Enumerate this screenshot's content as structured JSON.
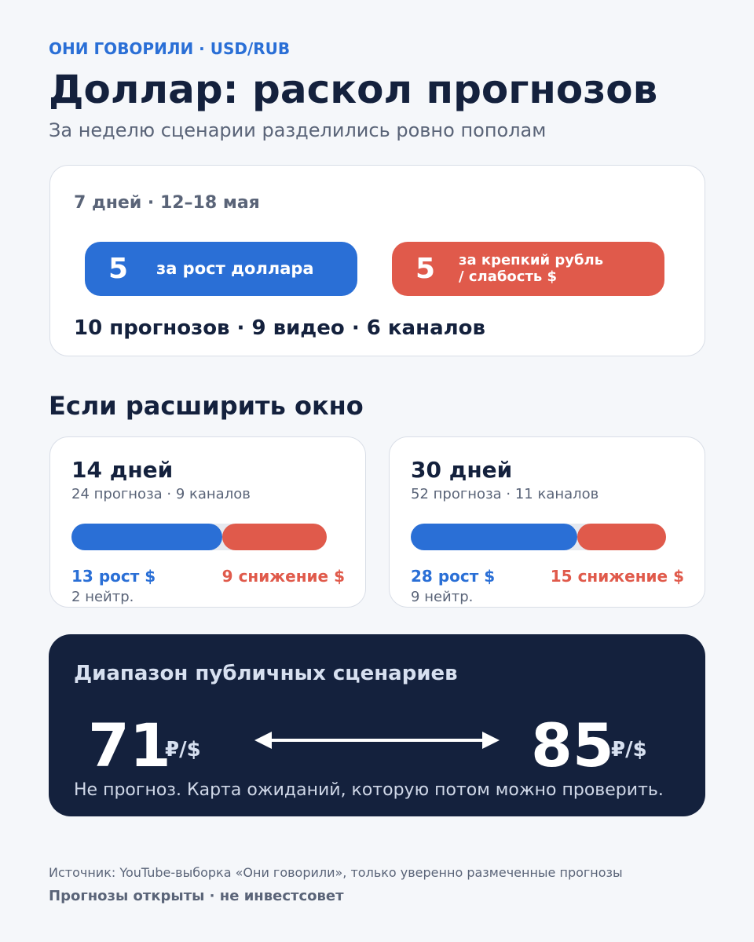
{
  "header": {
    "kicker": "ОНИ ГОВОРИЛИ · USD/RUB",
    "title": "Доллар: раскол прогнозов",
    "subtitle": "За неделю сценарии разделились ровно пополам"
  },
  "week": {
    "period": "7 дней · 12–18 мая",
    "up": 5,
    "up_label": "за рост доллара",
    "down": 5,
    "down_label": [
      "за крепкий рубль",
      "/ слабость $"
    ],
    "summary": "10 прогнозов · 9 видео · 6 каналов"
  },
  "windows_title": "Если расширить окно",
  "windows": [
    {
      "title": "14 дней",
      "meta": "24 прогноза · 9 каналов",
      "up": 13,
      "up_label": "рост $",
      "down": 9,
      "down_label": "снижение $",
      "neutral": 2,
      "neutral_label": "нейтр."
    },
    {
      "title": "30 дней",
      "meta": "52 прогноза · 11 каналов",
      "up": 28,
      "up_label": "рост $",
      "down": 15,
      "down_label": "снижение $",
      "neutral": 9,
      "neutral_label": "нейтр."
    }
  ],
  "range": {
    "title": "Диапазон публичных сценариев",
    "low": 71,
    "high": 85,
    "unit": "₽/$",
    "note": "Не прогноз. Карта ожиданий, которую потом можно проверить."
  },
  "footer": {
    "source": "Источник: YouTube-выборка «Они говорили», только уверенно размеченные прогнозы",
    "disclaimer": "Прогнозы открыты · не инвестсовет"
  }
}
